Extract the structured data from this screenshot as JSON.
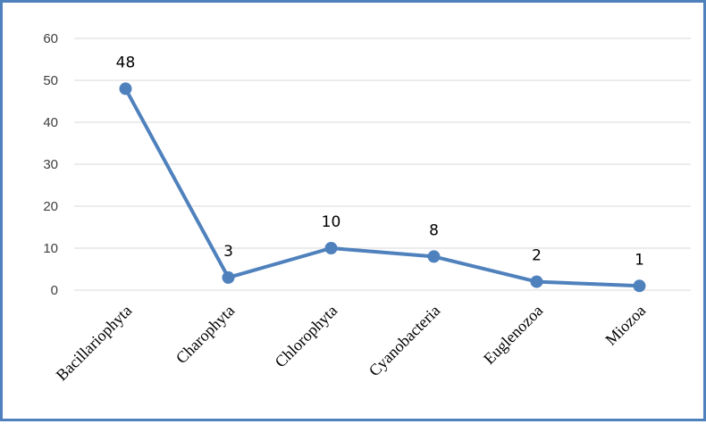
{
  "chart_data": {
    "type": "line",
    "title": "",
    "xlabel": "",
    "ylabel": "",
    "ylim": [
      0,
      60
    ],
    "yticks": [
      0,
      10,
      20,
      30,
      40,
      50,
      60
    ],
    "grid": true,
    "legend": "none",
    "categories": [
      "Bacillariophyta",
      "Charophyta",
      "Chlorophyta",
      "Cyanobacteria",
      "Euglenozoa",
      "Miozoa"
    ],
    "series": [
      {
        "values": [
          48,
          3,
          10,
          8,
          2,
          1
        ],
        "data_labels": [
          "48",
          "3",
          "10",
          "8",
          "2",
          "1"
        ],
        "color": "#4f81bd"
      }
    ],
    "gridline_color": "#d9d9d9",
    "frame_color": "#4f81bd"
  }
}
